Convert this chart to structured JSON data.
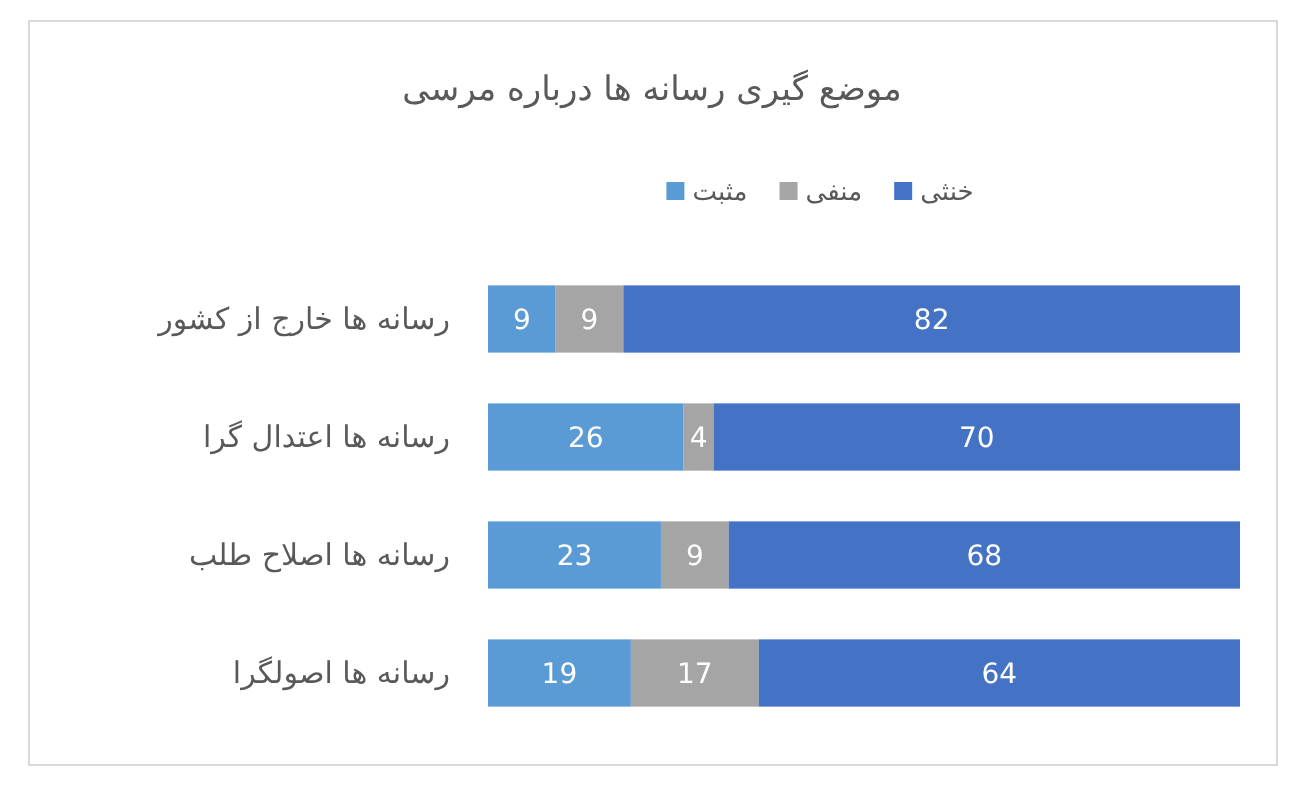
{
  "chart_data": {
    "type": "bar",
    "orientation": "horizontal",
    "stacked": true,
    "data_labels": true,
    "legend": "top",
    "title": "موضع گیری رسانه ها درباره مرسی",
    "categories": [
      "رسانه ها  خارج از کشور",
      "رسانه ها اعتدال گرا",
      "رسانه ها اصلاح طلب",
      "رسانه ها اصولگرا"
    ],
    "series": [
      {
        "name": "مثبت",
        "color": "#5b9bd5",
        "values": [
          9,
          26,
          23,
          19
        ]
      },
      {
        "name": "منفی",
        "color": "#a5a5a5",
        "values": [
          9,
          4,
          9,
          17
        ]
      },
      {
        "name": "خنثی",
        "color": "#4472c4",
        "values": [
          82,
          70,
          68,
          64
        ]
      }
    ]
  }
}
